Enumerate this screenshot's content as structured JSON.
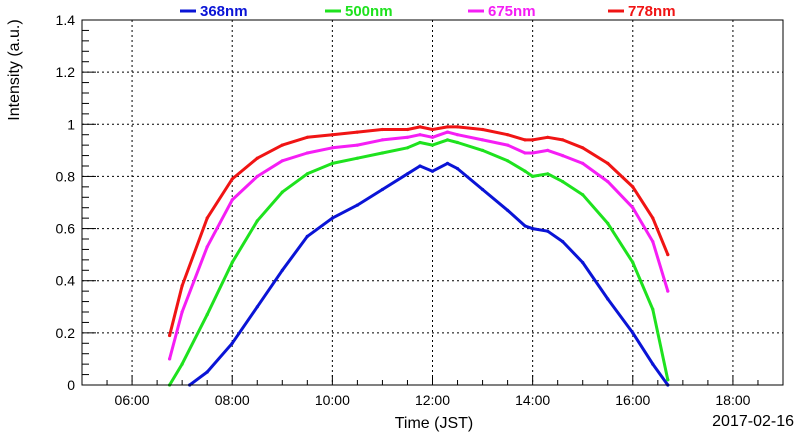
{
  "chart_data": {
    "type": "line",
    "xlabel": "Time (JST)",
    "ylabel": "Intensity (a.u.)",
    "date_label": "2017-02-16",
    "x_unit": "hour of day (JST)",
    "xlim": [
      5.0,
      19.0
    ],
    "ylim": [
      0,
      1.4
    ],
    "x_ticks": [
      {
        "value": 6,
        "label": "06:00"
      },
      {
        "value": 8,
        "label": "08:00"
      },
      {
        "value": 10,
        "label": "10:00"
      },
      {
        "value": 12,
        "label": "12:00"
      },
      {
        "value": 14,
        "label": "14:00"
      },
      {
        "value": 16,
        "label": "16:00"
      },
      {
        "value": 18,
        "label": "18:00"
      }
    ],
    "y_ticks": [
      {
        "value": 0,
        "label": "0"
      },
      {
        "value": 0.2,
        "label": "0.2"
      },
      {
        "value": 0.4,
        "label": "0.4"
      },
      {
        "value": 0.6,
        "label": "0.6"
      },
      {
        "value": 0.8,
        "label": "0.8"
      },
      {
        "value": 1.0,
        "label": "1"
      },
      {
        "value": 1.2,
        "label": "1.2"
      },
      {
        "value": 1.4,
        "label": "1.4"
      }
    ],
    "grid": true,
    "legend_position": "top",
    "series": [
      {
        "name": "368nm",
        "color": "#0a14d6",
        "points": [
          [
            7.15,
            0.0
          ],
          [
            7.5,
            0.05
          ],
          [
            8.0,
            0.16
          ],
          [
            8.5,
            0.3
          ],
          [
            9.0,
            0.44
          ],
          [
            9.5,
            0.57
          ],
          [
            10.0,
            0.64
          ],
          [
            10.5,
            0.69
          ],
          [
            11.0,
            0.75
          ],
          [
            11.5,
            0.81
          ],
          [
            11.75,
            0.84
          ],
          [
            12.0,
            0.82
          ],
          [
            12.3,
            0.85
          ],
          [
            12.5,
            0.83
          ],
          [
            13.0,
            0.75
          ],
          [
            13.5,
            0.67
          ],
          [
            13.85,
            0.61
          ],
          [
            14.0,
            0.6
          ],
          [
            14.3,
            0.59
          ],
          [
            14.6,
            0.55
          ],
          [
            15.0,
            0.47
          ],
          [
            15.5,
            0.33
          ],
          [
            16.0,
            0.2
          ],
          [
            16.4,
            0.08
          ],
          [
            16.7,
            0.0
          ]
        ]
      },
      {
        "name": "500nm",
        "color": "#1ee21e",
        "points": [
          [
            6.75,
            0.0
          ],
          [
            7.0,
            0.08
          ],
          [
            7.5,
            0.27
          ],
          [
            8.0,
            0.47
          ],
          [
            8.5,
            0.63
          ],
          [
            9.0,
            0.74
          ],
          [
            9.5,
            0.81
          ],
          [
            10.0,
            0.85
          ],
          [
            10.5,
            0.87
          ],
          [
            11.0,
            0.89
          ],
          [
            11.5,
            0.91
          ],
          [
            11.75,
            0.93
          ],
          [
            12.0,
            0.92
          ],
          [
            12.3,
            0.94
          ],
          [
            12.5,
            0.93
          ],
          [
            13.0,
            0.9
          ],
          [
            13.5,
            0.86
          ],
          [
            13.85,
            0.82
          ],
          [
            14.0,
            0.8
          ],
          [
            14.3,
            0.81
          ],
          [
            14.6,
            0.78
          ],
          [
            15.0,
            0.73
          ],
          [
            15.5,
            0.62
          ],
          [
            16.0,
            0.47
          ],
          [
            16.4,
            0.29
          ],
          [
            16.7,
            0.02
          ]
        ]
      },
      {
        "name": "675nm",
        "color": "#f51ef5",
        "points": [
          [
            6.75,
            0.1
          ],
          [
            7.0,
            0.28
          ],
          [
            7.5,
            0.53
          ],
          [
            8.0,
            0.71
          ],
          [
            8.5,
            0.8
          ],
          [
            9.0,
            0.86
          ],
          [
            9.5,
            0.89
          ],
          [
            10.0,
            0.91
          ],
          [
            10.5,
            0.92
          ],
          [
            11.0,
            0.94
          ],
          [
            11.5,
            0.95
          ],
          [
            11.75,
            0.96
          ],
          [
            12.0,
            0.95
          ],
          [
            12.3,
            0.97
          ],
          [
            12.5,
            0.96
          ],
          [
            13.0,
            0.94
          ],
          [
            13.5,
            0.92
          ],
          [
            13.85,
            0.89
          ],
          [
            14.0,
            0.89
          ],
          [
            14.3,
            0.9
          ],
          [
            14.6,
            0.88
          ],
          [
            15.0,
            0.85
          ],
          [
            15.5,
            0.78
          ],
          [
            16.0,
            0.68
          ],
          [
            16.4,
            0.55
          ],
          [
            16.7,
            0.36
          ]
        ]
      },
      {
        "name": "778nm",
        "color": "#f01414",
        "points": [
          [
            6.75,
            0.19
          ],
          [
            7.0,
            0.38
          ],
          [
            7.5,
            0.64
          ],
          [
            8.0,
            0.79
          ],
          [
            8.5,
            0.87
          ],
          [
            9.0,
            0.92
          ],
          [
            9.5,
            0.95
          ],
          [
            10.0,
            0.96
          ],
          [
            10.5,
            0.97
          ],
          [
            11.0,
            0.98
          ],
          [
            11.5,
            0.98
          ],
          [
            11.75,
            0.99
          ],
          [
            12.0,
            0.98
          ],
          [
            12.3,
            0.99
          ],
          [
            12.5,
            0.99
          ],
          [
            13.0,
            0.98
          ],
          [
            13.5,
            0.96
          ],
          [
            13.85,
            0.94
          ],
          [
            14.0,
            0.94
          ],
          [
            14.3,
            0.95
          ],
          [
            14.6,
            0.94
          ],
          [
            15.0,
            0.91
          ],
          [
            15.5,
            0.85
          ],
          [
            16.0,
            0.76
          ],
          [
            16.4,
            0.64
          ],
          [
            16.7,
            0.5
          ]
        ]
      }
    ]
  }
}
